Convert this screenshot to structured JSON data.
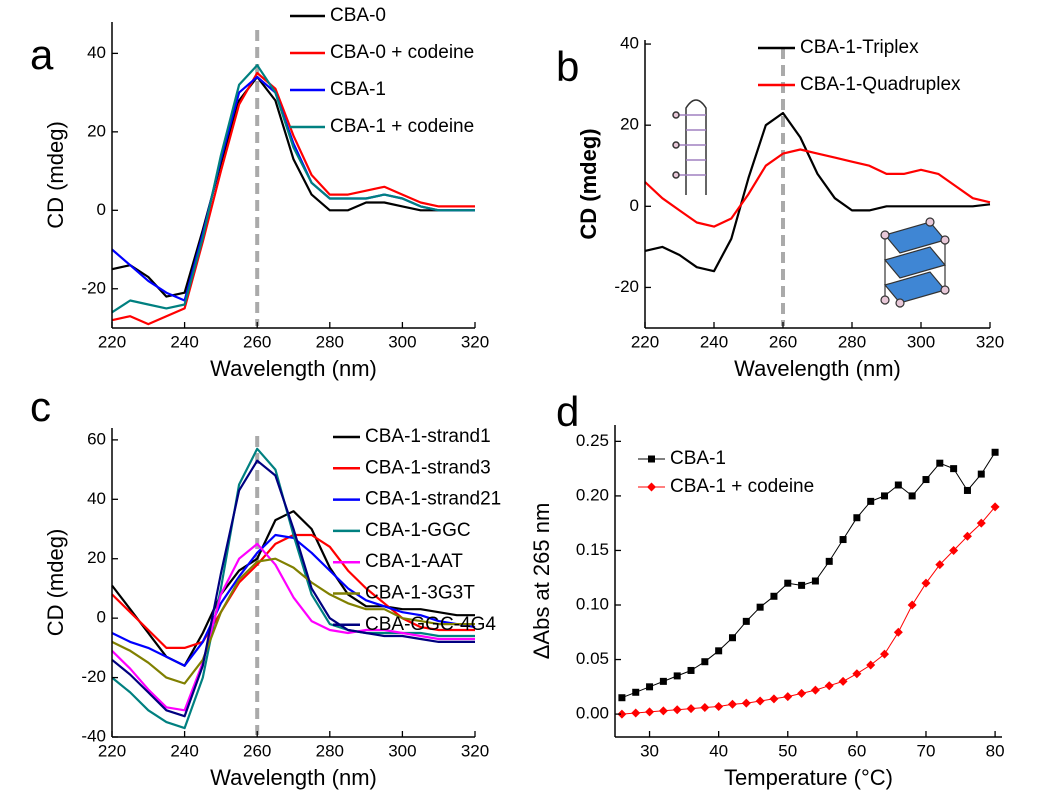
{
  "chart_data": [
    {
      "type": "line",
      "label": "a",
      "xlabel": "Wavelength (nm)",
      "ylabel": "CD (mdeg)",
      "ylabel_bold": false,
      "x": [
        220,
        225,
        230,
        235,
        240,
        245,
        250,
        255,
        260,
        265,
        270,
        275,
        280,
        285,
        290,
        295,
        300,
        305,
        310,
        315,
        320
      ],
      "xlim": [
        220,
        320
      ],
      "xticks": [
        220,
        240,
        260,
        280,
        300,
        320
      ],
      "ylim": [
        -30,
        48
      ],
      "yticks": [
        -20,
        0,
        20,
        40
      ],
      "grid": false,
      "reference_line": {
        "x": 260,
        "color": "#aaaaaa"
      },
      "series": [
        {
          "name": "CBA-0",
          "color": "#000000",
          "values": [
            -15,
            -14,
            -17,
            -22,
            -21,
            -5,
            12,
            28,
            34,
            28,
            13,
            4,
            0,
            0,
            2,
            2,
            1,
            0,
            0,
            0,
            0
          ]
        },
        {
          "name": "CBA-0 + codeine",
          "color": "#ff0000",
          "values": [
            -28,
            -27,
            -29,
            -27,
            -25,
            -8,
            10,
            27,
            35,
            31,
            19,
            9,
            4,
            4,
            5,
            6,
            4,
            2,
            1,
            1,
            1
          ]
        },
        {
          "name": "CBA-1",
          "color": "#0000ff",
          "values": [
            -10,
            -14,
            -18,
            -21,
            -23,
            -6,
            13,
            30,
            34,
            30,
            17,
            7,
            3,
            3,
            3,
            4,
            3,
            1,
            0,
            0,
            0
          ]
        },
        {
          "name": "CBA-1 + codeine",
          "color": "#008080",
          "values": [
            -26,
            -23,
            -24,
            -25,
            -24,
            -7,
            14,
            32,
            37,
            30,
            16,
            7,
            3,
            3,
            3,
            4,
            3,
            1,
            0,
            0,
            0
          ]
        }
      ]
    },
    {
      "type": "line",
      "label": "b",
      "xlabel": "Wavelength (nm)",
      "ylabel": "CD (mdeg)",
      "ylabel_bold": true,
      "x": [
        220,
        225,
        230,
        235,
        240,
        245,
        250,
        255,
        260,
        265,
        270,
        275,
        280,
        285,
        290,
        295,
        300,
        305,
        310,
        315,
        320
      ],
      "xlim": [
        220,
        320
      ],
      "xticks": [
        220,
        240,
        260,
        280,
        300,
        320
      ],
      "ylim": [
        -30,
        41
      ],
      "yticks": [
        -20,
        0,
        20,
        40
      ],
      "grid": false,
      "reference_line": {
        "x": 260,
        "color": "#aaaaaa"
      },
      "series": [
        {
          "name": "CBA-1-Triplex",
          "color": "#000000",
          "values": [
            -11,
            -10,
            -12,
            -15,
            -16,
            -8,
            7,
            20,
            23,
            17,
            8,
            2,
            -1,
            -1,
            0,
            0,
            0,
            0,
            0,
            0,
            0.5
          ]
        },
        {
          "name": "CBA-1-Quadruplex",
          "color": "#ff0000",
          "values": [
            6,
            2,
            -1,
            -4,
            -5,
            -3,
            3,
            10,
            13,
            14,
            13,
            12,
            11,
            10,
            8,
            8,
            9,
            8,
            5,
            2,
            1
          ]
        }
      ]
    },
    {
      "type": "line",
      "label": "c",
      "xlabel": "Wavelength (nm)",
      "ylabel": "CD (mdeg)",
      "ylabel_bold": false,
      "x": [
        220,
        225,
        230,
        235,
        240,
        245,
        250,
        255,
        260,
        265,
        270,
        275,
        280,
        285,
        290,
        295,
        300,
        305,
        310,
        315,
        320
      ],
      "xlim": [
        220,
        320
      ],
      "xticks": [
        220,
        240,
        260,
        280,
        300,
        320
      ],
      "ylim": [
        -40,
        64
      ],
      "yticks": [
        -40,
        -20,
        0,
        20,
        40,
        60
      ],
      "grid": false,
      "reference_line": {
        "x": 260,
        "color": "#aaaaaa"
      },
      "series": [
        {
          "name": "CBA-1-strand1",
          "color": "#000000",
          "values": [
            11,
            3,
            -5,
            -13,
            -16,
            -5,
            8,
            16,
            20,
            33,
            36,
            30,
            17,
            8,
            4,
            4,
            3,
            3,
            2,
            1,
            1
          ]
        },
        {
          "name": "CBA-1-strand3",
          "color": "#ff0000",
          "values": [
            8,
            2,
            -4,
            -10,
            -10,
            -8,
            2,
            12,
            18,
            25,
            28,
            28,
            24,
            16,
            10,
            5,
            0,
            -3,
            -4,
            -4,
            -4
          ]
        },
        {
          "name": "CBA-1-strand21",
          "color": "#0000ff",
          "values": [
            -5,
            -8,
            -10,
            -13,
            -16,
            -8,
            5,
            14,
            22,
            28,
            27,
            22,
            16,
            10,
            6,
            4,
            2,
            1,
            -1,
            -2,
            -3
          ]
        },
        {
          "name": "CBA-1-GGC",
          "color": "#008080",
          "values": [
            -20,
            -25,
            -31,
            -35,
            -37,
            -20,
            10,
            45,
            57,
            50,
            28,
            8,
            -2,
            -4,
            -5,
            -5,
            -5,
            -5,
            -6,
            -6,
            -6
          ]
        },
        {
          "name": "CBA-1-AAT",
          "color": "#ff00ff",
          "values": [
            -11,
            -17,
            -24,
            -30,
            -31,
            -15,
            8,
            20,
            25,
            18,
            7,
            -1,
            -4,
            -5,
            -4,
            -4,
            -5,
            -6,
            -7,
            -7,
            -7
          ]
        },
        {
          "name": "CBA-1-3G3T",
          "color": "#808000",
          "values": [
            -8,
            -11,
            -15,
            -20,
            -22,
            -14,
            2,
            13,
            19,
            20,
            17,
            12,
            8,
            5,
            3,
            3,
            0,
            -1,
            -2,
            -2,
            -2
          ]
        },
        {
          "name": "CBA-GGC-4G4",
          "color": "#000080",
          "values": [
            -14,
            -19,
            -25,
            -31,
            -33,
            -16,
            15,
            43,
            53,
            48,
            30,
            10,
            0,
            -4,
            -5,
            -6,
            -6,
            -7,
            -8,
            -8,
            -8
          ]
        }
      ]
    },
    {
      "type": "line",
      "label": "d",
      "xlabel": "Temperature (°C)",
      "ylabel": "ΔAbs at 265 nm",
      "ylabel_bold": false,
      "x": [
        26,
        28,
        30,
        32,
        34,
        36,
        38,
        40,
        42,
        44,
        46,
        48,
        50,
        52,
        54,
        56,
        58,
        60,
        62,
        64,
        66,
        68,
        70,
        72,
        74,
        76,
        78,
        80
      ],
      "xlim": [
        25,
        81
      ],
      "xticks": [
        30,
        40,
        50,
        60,
        70,
        80
      ],
      "ylim": [
        -0.021,
        0.265
      ],
      "yticks": [
        {
          "value": 0,
          "label": "0.00"
        },
        {
          "value": 0.05,
          "label": "0.05"
        },
        {
          "value": 0.1,
          "label": "0.10"
        },
        {
          "value": 0.15,
          "label": "0.15"
        },
        {
          "value": 0.2,
          "label": "0.20"
        },
        {
          "value": 0.25,
          "label": "0.25"
        }
      ],
      "grid": false,
      "series": [
        {
          "name": "CBA-1",
          "color": "#000000",
          "marker": "square",
          "values": [
            0.015,
            0.02,
            0.025,
            0.03,
            0.035,
            0.04,
            0.048,
            0.058,
            0.07,
            0.085,
            0.098,
            0.108,
            0.12,
            0.118,
            0.122,
            0.14,
            0.16,
            0.18,
            0.195,
            0.2,
            0.21,
            0.2,
            0.215,
            0.23,
            0.225,
            0.205,
            0.22,
            0.24
          ]
        },
        {
          "name": "CBA-1 + codeine",
          "color": "#ff0000",
          "marker": "diamond",
          "values": [
            0,
            0.001,
            0.002,
            0.003,
            0.004,
            0.005,
            0.006,
            0.007,
            0.009,
            0.01,
            0.012,
            0.014,
            0.016,
            0.019,
            0.022,
            0.026,
            0.03,
            0.037,
            0.045,
            0.055,
            0.075,
            0.1,
            0.12,
            0.137,
            0.15,
            0.163,
            0.175,
            0.19
          ]
        }
      ]
    }
  ]
}
